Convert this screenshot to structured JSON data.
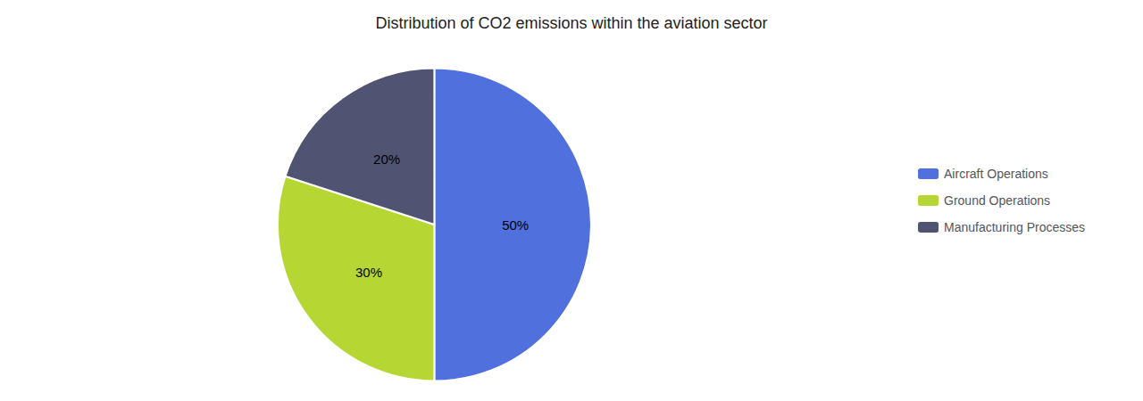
{
  "chart_data": {
    "type": "pie",
    "title": "Distribution of CO2 emissions within the aviation sector",
    "categories": [
      "Aircraft Operations",
      "Ground Operations",
      "Manufacturing Processes"
    ],
    "values": [
      50,
      30,
      20
    ],
    "value_labels": [
      "50%",
      "30%",
      "20%"
    ],
    "data_labels": true,
    "legend": "right"
  }
}
